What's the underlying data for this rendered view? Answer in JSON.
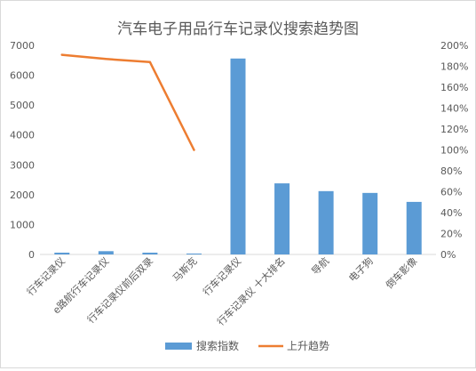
{
  "chart_data": {
    "type": "bar+line",
    "title": "汽车电子用品行车记录仪搜索趋势图",
    "categories": [
      "行车记录仪",
      "e路航行车记录仪",
      "行车记录仪前后双录",
      "马斯克",
      "行车记录仪",
      "行车记录仪 十大排名",
      "导航",
      "电子狗",
      "倒车影像"
    ],
    "series": [
      {
        "name": "搜索指数",
        "type": "bar",
        "axis": "left",
        "values": [
          60,
          110,
          60,
          30,
          6560,
          2380,
          2120,
          2060,
          1760
        ]
      },
      {
        "name": "上升趋势",
        "type": "line",
        "axis": "right",
        "values": [
          1.91,
          1.87,
          1.84,
          1.0,
          null,
          null,
          null,
          null,
          null
        ]
      }
    ],
    "y_left": {
      "ylim": [
        0,
        7000
      ],
      "ticks": [
        0,
        1000,
        2000,
        3000,
        4000,
        5000,
        6000,
        7000
      ]
    },
    "y_right": {
      "ylim": [
        0,
        2.0
      ],
      "ticks": [
        "0%",
        "20%",
        "40%",
        "60%",
        "80%",
        "100%",
        "120%",
        "140%",
        "160%",
        "180%",
        "200%"
      ]
    },
    "grid": false,
    "legend": "bottom",
    "colors": {
      "bar": "#5b9bd5",
      "line": "#ed7d31",
      "text": "#595959",
      "axis": "#d9d9d9"
    }
  }
}
